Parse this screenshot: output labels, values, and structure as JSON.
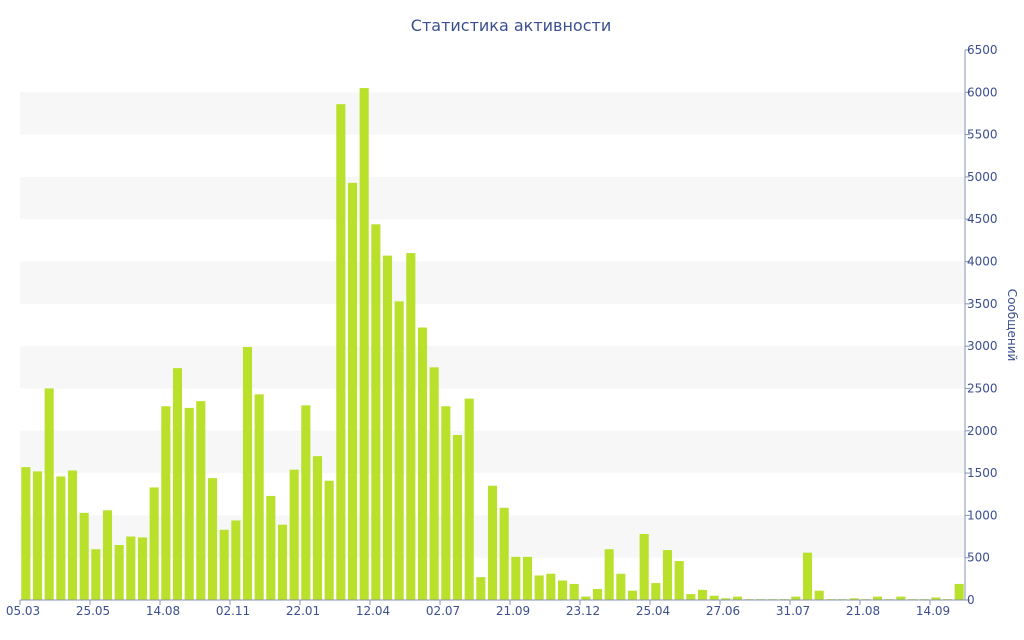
{
  "chart_data": {
    "type": "bar",
    "title": "Статистика активности",
    "ylabel": "Сообщений",
    "xlabel": "",
    "ylim": [
      0,
      6500
    ],
    "y_ticks": [
      0,
      500,
      1000,
      1500,
      2000,
      2500,
      3000,
      3500,
      4000,
      4500,
      5000,
      5500,
      6000,
      6500
    ],
    "y_axis_side": "right",
    "x_tick_labels": [
      {
        "index": 0,
        "label": "05.03"
      },
      {
        "index": 6,
        "label": "25.05"
      },
      {
        "index": 12,
        "label": "14.08"
      },
      {
        "index": 18,
        "label": "02.11"
      },
      {
        "index": 24,
        "label": "22.01"
      },
      {
        "index": 30,
        "label": "12.04"
      },
      {
        "index": 36,
        "label": "02.07"
      },
      {
        "index": 42,
        "label": "21.09"
      },
      {
        "index": 48,
        "label": "23.12"
      },
      {
        "index": 54,
        "label": "25.04"
      },
      {
        "index": 60,
        "label": "27.06"
      },
      {
        "index": 66,
        "label": "31.07"
      },
      {
        "index": 72,
        "label": "21.08"
      },
      {
        "index": 78,
        "label": "14.09"
      }
    ],
    "values": [
      1570,
      1520,
      2500,
      1460,
      1530,
      1030,
      600,
      1060,
      650,
      750,
      740,
      1330,
      2290,
      2740,
      2270,
      2350,
      1440,
      830,
      940,
      2990,
      2430,
      1230,
      890,
      1540,
      2300,
      1700,
      1410,
      5860,
      4930,
      6050,
      4440,
      4070,
      3530,
      4100,
      3220,
      2750,
      2290,
      1950,
      2380,
      270,
      1350,
      1090,
      510,
      510,
      290,
      310,
      230,
      190,
      40,
      130,
      600,
      310,
      110,
      780,
      200,
      590,
      460,
      70,
      120,
      50,
      20,
      40,
      10,
      10,
      10,
      10,
      40,
      560,
      110,
      10,
      10,
      20,
      10,
      40,
      10,
      40,
      10,
      10,
      30,
      10,
      190
    ],
    "colors": {
      "bar": "#b9e02a",
      "text": "#3b4f8f",
      "band": "#f7f7f7"
    },
    "grid": "alternating bands"
  }
}
